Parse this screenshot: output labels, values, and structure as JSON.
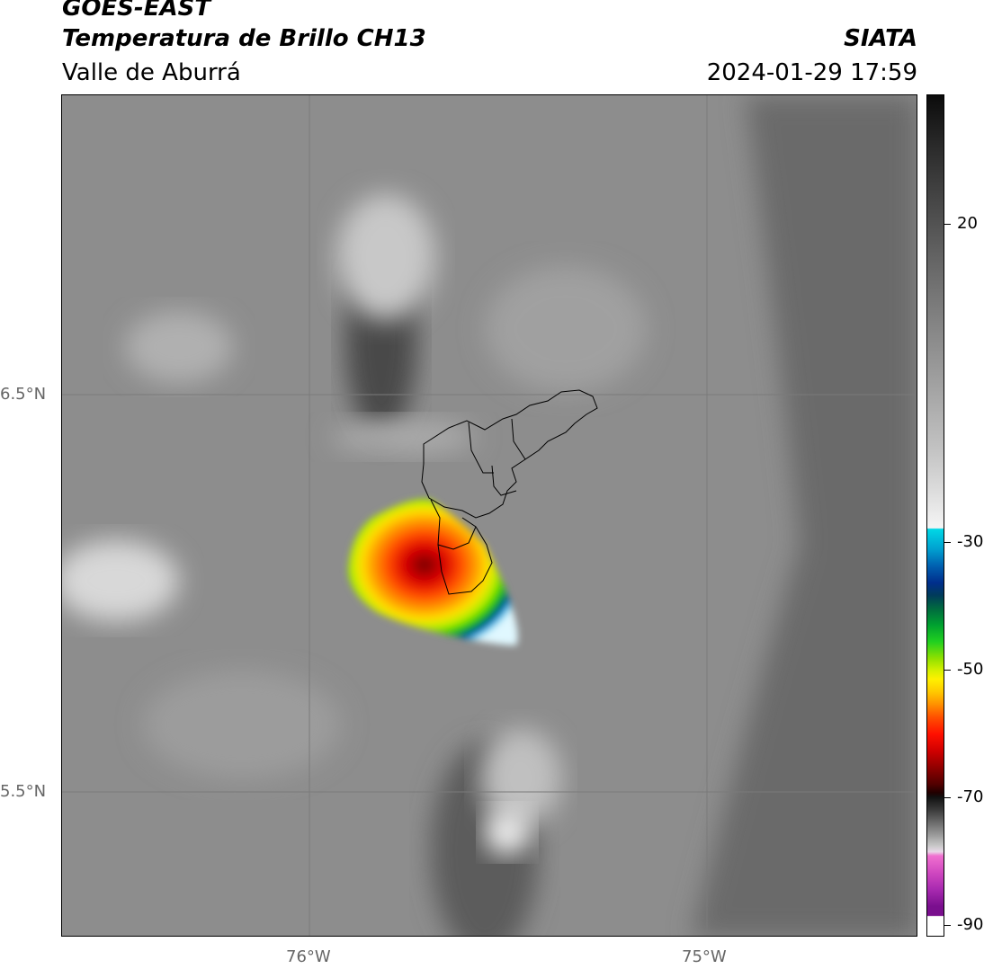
{
  "header": {
    "satellite": "GOES-EAST",
    "product": "Temperatura de Brillo CH13",
    "region": "Valle de Aburrá",
    "source": "SIATA",
    "datetime": "2024-01-29 17:59"
  },
  "axes": {
    "lat_labels": [
      "6.5°N",
      "5.5°N"
    ],
    "lon_labels": [
      "76°W",
      "75°W"
    ]
  },
  "colorbar": {
    "ticks": [
      "20",
      "-30",
      "-50",
      "-70",
      "-90"
    ]
  },
  "colors": {
    "background_gray": "#8e8e8e",
    "storm_core": "#c00000",
    "storm_edge": "#0050b0"
  }
}
